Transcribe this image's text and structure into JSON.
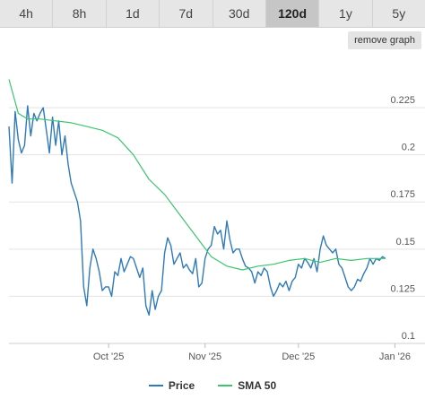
{
  "tabs": [
    {
      "label": "4h",
      "active": false
    },
    {
      "label": "8h",
      "active": false
    },
    {
      "label": "1d",
      "active": false
    },
    {
      "label": "7d",
      "active": false
    },
    {
      "label": "30d",
      "active": false
    },
    {
      "label": "120d",
      "active": true
    },
    {
      "label": "1y",
      "active": false
    },
    {
      "label": "5y",
      "active": false
    }
  ],
  "remove_graph_label": "remove graph",
  "colors": {
    "price": "#2f7ab9",
    "sma": "#3cc46e",
    "grid": "#e3e3e3"
  },
  "legend": [
    {
      "label": "Price",
      "color": "#2f7ab9"
    },
    {
      "label": "SMA 50",
      "color": "#3cc46e"
    }
  ],
  "chart_data": {
    "type": "line",
    "title": "",
    "xlabel": "",
    "ylabel": "",
    "x_ticks": [
      "Oct '25",
      "Nov '25",
      "Dec '25",
      "Jan '26"
    ],
    "y_ticks": [
      0.1,
      0.125,
      0.15,
      0.175,
      0.2,
      0.225
    ],
    "ylim": [
      0.1,
      0.245
    ],
    "x_range_days": [
      0,
      121
    ],
    "x_tick_days": [
      32,
      63,
      93,
      124
    ],
    "grid": true,
    "legend_position": "bottom",
    "series": [
      {
        "name": "Price",
        "color": "#2f7ab9",
        "x": [
          0,
          1,
          2,
          3,
          4,
          5,
          6,
          7,
          8,
          9,
          10,
          11,
          12,
          13,
          14,
          15,
          16,
          17,
          18,
          19,
          20,
          21,
          22,
          23,
          24,
          25,
          26,
          27,
          28,
          29,
          30,
          31,
          32,
          33,
          34,
          35,
          36,
          37,
          38,
          39,
          40,
          41,
          42,
          43,
          44,
          45,
          46,
          47,
          48,
          49,
          50,
          51,
          52,
          53,
          54,
          55,
          56,
          57,
          58,
          59,
          60,
          61,
          62,
          63,
          64,
          65,
          66,
          67,
          68,
          69,
          70,
          71,
          72,
          73,
          74,
          75,
          76,
          77,
          78,
          79,
          80,
          81,
          82,
          83,
          84,
          85,
          86,
          87,
          88,
          89,
          90,
          91,
          92,
          93,
          94,
          95,
          96,
          97,
          98,
          99,
          100,
          101,
          102,
          103,
          104,
          105,
          106,
          107,
          108,
          109,
          110,
          111,
          112,
          113,
          114,
          115,
          116,
          117,
          118,
          119,
          120,
          121
        ],
        "values": [
          0.215,
          0.185,
          0.223,
          0.208,
          0.201,
          0.205,
          0.226,
          0.21,
          0.222,
          0.218,
          0.222,
          0.225,
          0.213,
          0.201,
          0.22,
          0.205,
          0.218,
          0.2,
          0.21,
          0.195,
          0.185,
          0.18,
          0.175,
          0.165,
          0.13,
          0.12,
          0.14,
          0.15,
          0.145,
          0.138,
          0.128,
          0.13,
          0.13,
          0.125,
          0.138,
          0.136,
          0.145,
          0.138,
          0.142,
          0.146,
          0.145,
          0.14,
          0.135,
          0.14,
          0.12,
          0.115,
          0.128,
          0.118,
          0.125,
          0.128,
          0.148,
          0.156,
          0.152,
          0.142,
          0.145,
          0.148,
          0.14,
          0.142,
          0.139,
          0.137,
          0.145,
          0.13,
          0.132,
          0.145,
          0.15,
          0.152,
          0.162,
          0.158,
          0.16,
          0.15,
          0.165,
          0.155,
          0.148,
          0.15,
          0.15,
          0.145,
          0.141,
          0.14,
          0.138,
          0.132,
          0.138,
          0.136,
          0.14,
          0.138,
          0.13,
          0.125,
          0.128,
          0.132,
          0.13,
          0.133,
          0.128,
          0.133,
          0.135,
          0.142,
          0.14,
          0.145,
          0.143,
          0.14,
          0.145,
          0.138,
          0.15,
          0.157,
          0.152,
          0.15,
          0.148,
          0.15,
          0.142,
          0.14,
          0.135,
          0.13,
          0.128,
          0.13,
          0.134,
          0.133,
          0.137,
          0.14,
          0.145,
          0.142,
          0.145,
          0.144,
          0.146,
          0.145
        ],
        "x_points": [
          0,
          1,
          2,
          3,
          4,
          5,
          6,
          7,
          8,
          9,
          10,
          11,
          12,
          13,
          14,
          15,
          16,
          17,
          18,
          19,
          20,
          21,
          22,
          23,
          24,
          25,
          26,
          27,
          28,
          29,
          30,
          31,
          32,
          33,
          34,
          35,
          36,
          37,
          38,
          39,
          40,
          41,
          42,
          43,
          44,
          45,
          46,
          47,
          48,
          49,
          50,
          51,
          52,
          53,
          54,
          55,
          56,
          57,
          58,
          59,
          60,
          61,
          62,
          63,
          64,
          65,
          66,
          67,
          68,
          69,
          70,
          71,
          72,
          73,
          74,
          75,
          76,
          77,
          78,
          79,
          80,
          81,
          82,
          83,
          84,
          85,
          86,
          87,
          88,
          89,
          90,
          91,
          92,
          93,
          94,
          95,
          96,
          97,
          98,
          99,
          100,
          101,
          102,
          103,
          104,
          105,
          106,
          107,
          108,
          109,
          110,
          111,
          112,
          113,
          114,
          115,
          116,
          117,
          118,
          119,
          120,
          121
        ]
      },
      {
        "name": "SMA 50",
        "color": "#3cc46e",
        "x": [
          0,
          3,
          6,
          10,
          15,
          20,
          25,
          30,
          35,
          40,
          45,
          50,
          55,
          60,
          65,
          70,
          75,
          80,
          85,
          90,
          95,
          100,
          105,
          110,
          115,
          121
        ],
        "values": [
          0.24,
          0.222,
          0.219,
          0.219,
          0.218,
          0.217,
          0.215,
          0.213,
          0.209,
          0.2,
          0.187,
          0.179,
          0.168,
          0.157,
          0.146,
          0.141,
          0.139,
          0.141,
          0.142,
          0.144,
          0.145,
          0.143,
          0.145,
          0.144,
          0.145,
          0.145
        ]
      }
    ]
  }
}
